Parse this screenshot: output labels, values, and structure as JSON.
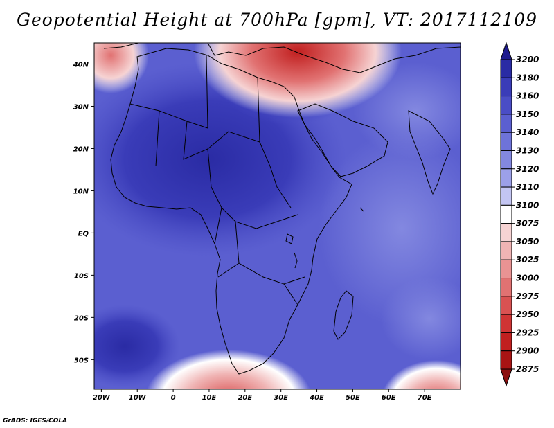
{
  "title": "Geopotential Height at 700hPa [gpm], VT: 2017112109",
  "credit": "GrADS: IGES/COLA",
  "map": {
    "lon_labels": [
      "20W",
      "10W",
      "0",
      "10E",
      "20E",
      "30E",
      "40E",
      "50E",
      "60E",
      "70E"
    ],
    "lon_values": [
      -20,
      -10,
      0,
      10,
      20,
      30,
      40,
      50,
      60,
      70
    ],
    "lat_labels": [
      "40N",
      "30N",
      "20N",
      "10N",
      "EQ",
      "10S",
      "20S",
      "30S"
    ],
    "lat_values": [
      40,
      30,
      20,
      10,
      0,
      -10,
      -20,
      -30
    ],
    "lon_range": [
      -22,
      80
    ],
    "lat_range": [
      -37,
      45
    ]
  },
  "colorbar": {
    "labels": [
      "3200",
      "3180",
      "3160",
      "3150",
      "3140",
      "3130",
      "3120",
      "3110",
      "3100",
      "3075",
      "3050",
      "3025",
      "3000",
      "2975",
      "2950",
      "2925",
      "2900",
      "2875"
    ],
    "colors": [
      "#1e1a8e",
      "#2a2ba4",
      "#3a3cb8",
      "#4a4dc6",
      "#5b5fd0",
      "#6e73d9",
      "#8388e0",
      "#9ca0e8",
      "#c3c5f2",
      "#ffffff",
      "#f6d3d3",
      "#f0b4b4",
      "#e99393",
      "#e17272",
      "#d95252",
      "#cf3434",
      "#c11f1f",
      "#a81414",
      "#8c0f0f"
    ]
  }
}
